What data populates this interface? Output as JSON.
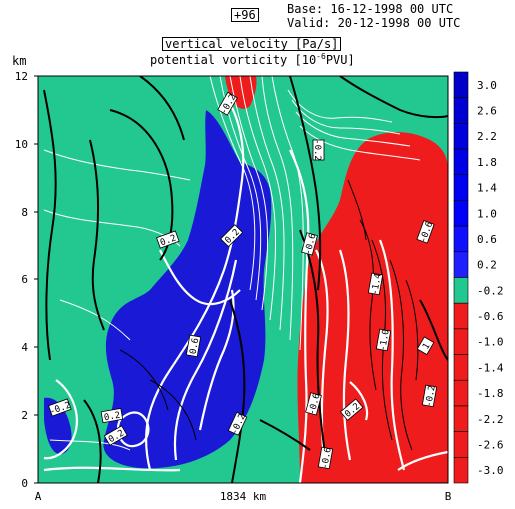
{
  "header": {
    "forecast_step": "+96",
    "base_line": "Base: 16-12-1998  00 UTC",
    "valid_line": "Valid: 20-12-1998  00 UTC",
    "field1_label": "vertical velocity [Pa/s]",
    "field2_label": "potential vorticity [10",
    "field2_exp": "-6",
    "field2_tail": "PVU]"
  },
  "axes": {
    "y_unit": "km",
    "x_left_label": "A",
    "x_right_label": "B",
    "x_distance": "1834 km"
  },
  "colors": {
    "background_green": "#22c890",
    "positive_blue": "#1a1ad6",
    "negative_red": "#ee1c1c",
    "white_contour": "#ffffff",
    "black_contour": "#000000"
  },
  "chart_data": {
    "type": "heatmap",
    "title": "vertical velocity [Pa/s] / potential vorticity",
    "ylabel": "km",
    "xlabel": "1834 km",
    "ylim": [
      0,
      12
    ],
    "y_ticks": [
      "0",
      "2",
      "4",
      "6",
      "8",
      "10",
      "12"
    ],
    "colorbar": {
      "levels": [
        "3.0",
        "2.6",
        "2.2",
        "1.8",
        "1.4",
        "1.0",
        "0.6",
        "0.2",
        "-0.2",
        "-0.6",
        "-1.0",
        "-1.4",
        "-1.8",
        "-2.2",
        "-2.6",
        "-3.0"
      ],
      "values": [
        3.0,
        2.6,
        2.2,
        1.8,
        1.4,
        1.0,
        0.6,
        0.2,
        -0.2,
        -0.6,
        -1.0,
        -1.4,
        -1.8,
        -2.2,
        -2.6,
        -3.0
      ],
      "colors": [
        "#0000c8",
        "#0000d2",
        "#0000dc",
        "#0000e6",
        "#0000f0",
        "#0000fa",
        "#1010ff",
        "#2020ff",
        "#22c890",
        "#ee1c1c",
        "#ee1c1c",
        "#ee1c1c",
        "#ee1c1c",
        "#ee1c1c",
        "#ee1c1c",
        "#ee1c1c"
      ]
    },
    "contour_labels": [
      "-0.2",
      "-0.2",
      "-0.2",
      "-0.6",
      "-0.6",
      "-1.4",
      "-1.0",
      "0.2",
      "0.6",
      "-0.6",
      "-0.2",
      "0.2",
      "0.2",
      "-0.2",
      "-0.6",
      "1",
      "0.2",
      "0.2"
    ]
  }
}
